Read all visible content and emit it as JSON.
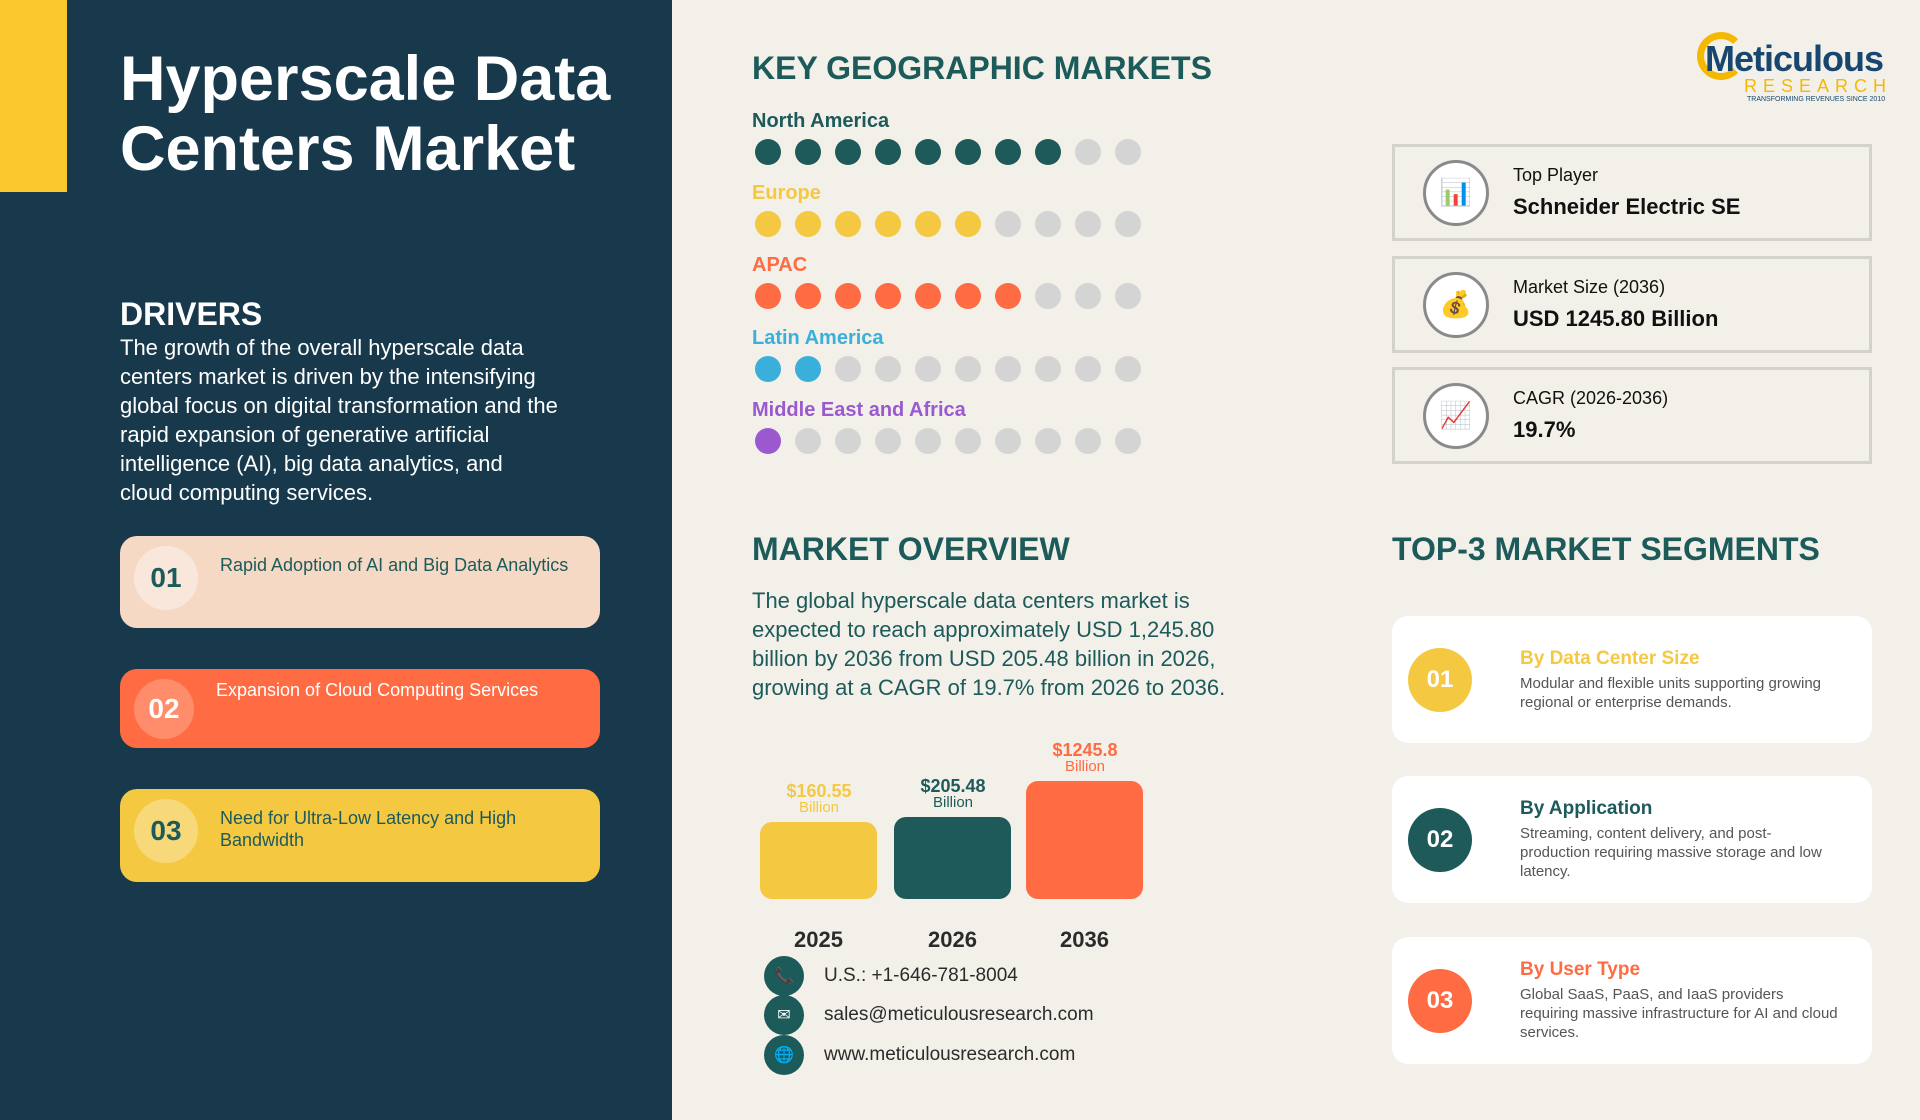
{
  "colors": {
    "navy": "#17394b",
    "yellow": "#f5c842",
    "teal": "#1e5a5a",
    "orange": "#ff6b42",
    "cyan": "#3aafd9",
    "purple": "#9b59d0",
    "grey": "#d4d4d4"
  },
  "left": {
    "title": "Hyperscale Data Centers Market",
    "drivers_heading": "DRIVERS",
    "drivers_text": "The growth of the overall hyperscale data centers market is driven by the intensifying global focus on digital transformation and the rapid expansion of generative artificial intelligence (AI), big data analytics, and cloud computing services.",
    "drivers": [
      {
        "num": "01",
        "label": "Rapid Adoption of AI and Big Data Analytics"
      },
      {
        "num": "02",
        "label": "Expansion of Cloud Computing Services"
      },
      {
        "num": "03",
        "label": "Need for Ultra-Low Latency and High Bandwidth"
      }
    ]
  },
  "geo": {
    "heading": "KEY GEOGRAPHIC MARKETS",
    "regions": [
      {
        "name": "North America",
        "filled": 8,
        "total": 10,
        "color": "#1e5a5a"
      },
      {
        "name": "Europe",
        "filled": 6,
        "total": 10,
        "color": "#f5c842"
      },
      {
        "name": "APAC",
        "filled": 7,
        "total": 10,
        "color": "#ff6b42"
      },
      {
        "name": "Latin America",
        "filled": 2,
        "total": 10,
        "color": "#3aafd9"
      },
      {
        "name": "Middle East and Africa",
        "filled": 1,
        "total": 10,
        "color": "#9b59d0"
      }
    ]
  },
  "overview": {
    "heading": "MARKET OVERVIEW",
    "text": "The global hyperscale data centers market is expected to reach approximately USD 1,245.80 billion by 2036 from USD 205.48 billion in 2026, growing at a CAGR of 19.7% from 2026 to 2036."
  },
  "chart_data": {
    "type": "bar",
    "categories": [
      "2025",
      "2026",
      "2036"
    ],
    "values": [
      160.55,
      205.48,
      1245.8
    ],
    "value_labels": [
      "$160.55",
      "$205.48",
      "$1245.8"
    ],
    "unit": "Billion",
    "colors": [
      "#f5c842",
      "#1e5a5a",
      "#ff6b42"
    ]
  },
  "contact": {
    "phone": "U.S.: +1-646-781-8004",
    "email": "sales@meticulousresearch.com",
    "web": "www.meticulousresearch.com"
  },
  "logo": {
    "name": "Meticulous",
    "sub": "RESEARCH",
    "tagline": "TRANSFORMING REVENUES SINCE 2010"
  },
  "info": [
    {
      "icon": "bar-chart-icon",
      "label": "Top Player",
      "value": "Schneider Electric SE"
    },
    {
      "icon": "money-bag-icon",
      "label": "Market Size (2036)",
      "value": "USD 1245.80 Billion"
    },
    {
      "icon": "trend-chart-icon",
      "label": "CAGR (2026-2036)",
      "value": "19.7%"
    }
  ],
  "segments": {
    "heading": "TOP-3 MARKET SEGMENTS",
    "items": [
      {
        "num": "01",
        "title": "By Data Center Size",
        "desc": "Modular and flexible units supporting growing regional or enterprise demands."
      },
      {
        "num": "02",
        "title": "By Application",
        "desc": "Streaming, content delivery, and post-production requiring massive storage and low latency."
      },
      {
        "num": "03",
        "title": "By User Type",
        "desc": "Global SaaS, PaaS, and IaaS providers requiring massive infrastructure for AI and cloud services."
      }
    ]
  }
}
